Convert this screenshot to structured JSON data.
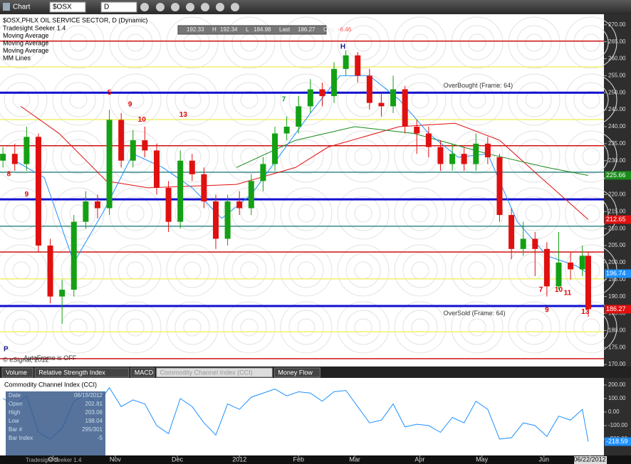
{
  "toolbar": {
    "title": "Chart",
    "symbol": "$OSX",
    "interval": "D"
  },
  "quote": {
    "open": 192.33,
    "high_label": "H",
    "high": 192.34,
    "low_label": "L",
    "low": 184.98,
    "last_label": "Last",
    "last": 186.27,
    "chg_label": "Chg",
    "chg": -6.46
  },
  "tabs": [
    "Volume",
    "Relative Strength Index",
    "MACD",
    "Commodity Channel Index (CCI)",
    "Money Flow"
  ],
  "data_window": {
    "labels": [
      "Date",
      "Open",
      "High",
      "Low",
      "Bar #",
      "Bar Index"
    ],
    "values": [
      "06/19/2012",
      "202.81",
      "203.06",
      "198.04",
      "295/301",
      "-5"
    ],
    "study": "Tradesight Seeker 1.4"
  },
  "chart_data": [
    {
      "type": "candlestick",
      "title": "$OSX,PHLX OIL SERVICE SECTOR, D (Dynamic)",
      "studies": [
        "Tradesight Seeker 1.4",
        "Moving Average",
        "Moving Average",
        "Moving Average",
        "MM Lines"
      ],
      "x": [
        1,
        5,
        9,
        13,
        17,
        21,
        25,
        29,
        33,
        37,
        41,
        45,
        49,
        53,
        57,
        61,
        65,
        69,
        73,
        77,
        81,
        85,
        89,
        93,
        97,
        101,
        105,
        109,
        113,
        117,
        121,
        125,
        129,
        133,
        137,
        141,
        145,
        149,
        153,
        157,
        161,
        165,
        169,
        173,
        177,
        181,
        185,
        189,
        193,
        197,
        199
      ],
      "open": [
        230,
        232,
        229,
        237,
        205,
        190,
        192,
        212,
        218,
        216,
        242,
        230,
        236,
        233,
        222,
        212,
        230,
        226,
        218,
        207,
        218,
        216,
        224,
        229,
        238,
        240,
        246,
        251,
        249,
        257,
        261,
        255,
        247,
        246,
        251,
        240,
        238,
        234,
        229,
        232,
        229,
        235,
        231,
        214,
        204,
        207,
        204,
        193,
        200,
        198,
        202
      ],
      "high": [
        234,
        235,
        240,
        238,
        207,
        195,
        214,
        221,
        220,
        245,
        244,
        239,
        240,
        235,
        224,
        233,
        232,
        228,
        220,
        220,
        221,
        226,
        231,
        240,
        243,
        249,
        254,
        253,
        259,
        262.5,
        262,
        257,
        250,
        255,
        252,
        242,
        240,
        236,
        235,
        234,
        238,
        237,
        232,
        216,
        212,
        209,
        206,
        209,
        203,
        205,
        203
      ],
      "low": [
        228,
        227,
        227,
        203,
        188,
        182,
        190,
        210,
        213,
        214,
        228,
        228,
        231,
        220,
        209,
        210,
        224,
        216,
        204,
        205,
        214,
        214,
        221,
        227,
        236,
        238,
        244,
        246,
        247,
        255,
        253,
        245,
        243,
        244,
        238,
        232,
        231,
        227,
        227,
        227,
        227,
        229,
        212,
        201,
        202,
        196,
        190,
        192,
        195,
        196,
        184
      ],
      "close": [
        232,
        229,
        237,
        205,
        190,
        192,
        212,
        218,
        216,
        242,
        230,
        236,
        233,
        222,
        212,
        230,
        226,
        218,
        207,
        218,
        216,
        224,
        229,
        238,
        240,
        246,
        251,
        249,
        257,
        261,
        255,
        247,
        246,
        251,
        240,
        238,
        234,
        229,
        232,
        229,
        235,
        231,
        214,
        204,
        207,
        204,
        193,
        200,
        198,
        202,
        186.27
      ],
      "up_color": "#14a014",
      "down_color": "#e01010",
      "series": [
        {
          "name": "Moving Average",
          "color": "#e01010",
          "x": [
            7,
            20,
            36,
            50,
            80,
            100,
            111,
            135,
            154,
            169,
            183,
            199
          ],
          "values": [
            246,
            238,
            224,
            222,
            223,
            228,
            234,
            240,
            241,
            236,
            225,
            212.65
          ]
        },
        {
          "name": "Moving Average",
          "color": "#1a8a1a",
          "x": [
            80,
            100,
            120,
            140,
            165,
            185,
            199
          ],
          "values": [
            228,
            236,
            240,
            238,
            232,
            228,
            225.66
          ]
        },
        {
          "name": "Moving Average",
          "color": "#1e90ff",
          "x": [
            5,
            15,
            25,
            35,
            45,
            55,
            65,
            75,
            85,
            95,
            105,
            115,
            125,
            135,
            145,
            155,
            165,
            175,
            185,
            195,
            199
          ],
          "values": [
            230,
            225,
            200,
            215,
            232,
            228,
            222,
            213,
            220,
            232,
            244,
            255,
            255,
            248,
            238,
            231,
            232,
            212,
            202,
            199,
            196.74
          ]
        }
      ],
      "levels": [
        {
          "value": 250,
          "color": "#1010d0"
        },
        {
          "value": 218.6,
          "color": "#1010d0"
        },
        {
          "value": 187.2,
          "color": "#1010d0"
        },
        {
          "value": 265.2,
          "color": "#d01010"
        },
        {
          "value": 234.4,
          "color": "#d01010"
        },
        {
          "value": 203.1,
          "color": "#d01010"
        },
        {
          "value": 171.7,
          "color": "#d01010"
        },
        {
          "value": 257.6,
          "color": "#f0f070"
        },
        {
          "value": 242.1,
          "color": "#f0f070"
        },
        {
          "value": 195.2,
          "color": "#f0f070"
        },
        {
          "value": 179.6,
          "color": "#f0f070"
        },
        {
          "value": 226.6,
          "color": "#3a8a8a"
        },
        {
          "value": 210.7,
          "color": "#3a8a8a"
        }
      ],
      "annotations": [
        {
          "text": "OverBought (Frame: 64)",
          "x": 150,
          "y": 252
        },
        {
          "text": "OverSold (Frame: 64)",
          "x": 150,
          "y": 185
        },
        {
          "text": "AutoFrame is OFF",
          "x": 8,
          "y": 171.8
        },
        {
          "text": "© eSignal, 2012",
          "x": 1,
          "y": 171.3
        }
      ],
      "counts": [
        {
          "text": "H",
          "x": 116,
          "y": 263.5,
          "color": "#1a1a8c"
        },
        {
          "text": "13",
          "x": 62,
          "y": 243.5,
          "color": "#e00000"
        },
        {
          "text": "9",
          "x": 44,
          "y": 246.5,
          "color": "#e00000"
        },
        {
          "text": "10",
          "x": 48,
          "y": 242,
          "color": "#e00000"
        },
        {
          "text": "5",
          "x": 37,
          "y": 250,
          "color": "#e00000"
        },
        {
          "text": "7",
          "x": 96,
          "y": 248,
          "color": "#20a020"
        },
        {
          "text": "9",
          "x": 185,
          "y": 186,
          "color": "#e00000"
        },
        {
          "text": "10",
          "x": 189,
          "y": 192,
          "color": "#e00000"
        },
        {
          "text": "11",
          "x": 192,
          "y": 191,
          "color": "#e00000"
        },
        {
          "text": "7",
          "x": 183,
          "y": 192,
          "color": "#e00000"
        },
        {
          "text": "13",
          "x": 198,
          "y": 185.5,
          "color": "#e00000"
        },
        {
          "text": "8",
          "x": 3,
          "y": 226,
          "color": "#e00000"
        },
        {
          "text": "9",
          "x": 9,
          "y": 220,
          "color": "#e00000"
        },
        {
          "text": "P",
          "x": 2,
          "y": 174.5,
          "color": "#1a1a8c"
        }
      ],
      "xlim": [
        0,
        204.3
      ],
      "xticks": [
        {
          "value": 18,
          "label": "Oct"
        },
        {
          "value": 39,
          "label": "Nov"
        },
        {
          "value": 60,
          "label": "Dec"
        },
        {
          "value": 81,
          "label": "2012"
        },
        {
          "value": 101,
          "label": "Feb"
        },
        {
          "value": 120,
          "label": "Mar"
        },
        {
          "value": 142,
          "label": "Apr"
        },
        {
          "value": 163,
          "label": "May"
        },
        {
          "value": 184,
          "label": "Jun"
        },
        {
          "value": 199.5,
          "label": "06/22/2012"
        }
      ],
      "ylim": [
        169.4,
        273.1
      ],
      "yticks": [
        {
          "value": 170,
          "label": "170.00"
        },
        {
          "value": 175,
          "label": "175.00"
        },
        {
          "value": 180,
          "label": "180.00"
        },
        {
          "value": 185,
          "label": "185.00"
        },
        {
          "value": 190,
          "label": "190.00"
        },
        {
          "value": 195,
          "label": "195.00"
        },
        {
          "value": 200,
          "label": "200.00"
        },
        {
          "value": 205,
          "label": "205.00"
        },
        {
          "value": 210,
          "label": "210.00"
        },
        {
          "value": 215,
          "label": "215.00"
        },
        {
          "value": 220,
          "label": "220.00"
        },
        {
          "value": 225,
          "label": "225.00"
        },
        {
          "value": 230,
          "label": "230.00"
        },
        {
          "value": 235,
          "label": "235.00"
        },
        {
          "value": 240,
          "label": "240.00"
        },
        {
          "value": 245,
          "label": "245.00"
        },
        {
          "value": 250,
          "label": "250.00"
        },
        {
          "value": 255,
          "label": "255.00"
        },
        {
          "value": 260,
          "label": "260.00"
        },
        {
          "value": 265,
          "label": "265.00"
        },
        {
          "value": 270,
          "label": "270.00"
        }
      ]
    },
    {
      "type": "line",
      "title": "Commodity Channel Index (CCI)",
      "series": [
        {
          "name": "Commodity Channel Index (CCI)",
          "color": "#1e90ff",
          "x": [
            1,
            5,
            9,
            13,
            17,
            21,
            25,
            29,
            33,
            37,
            41,
            45,
            49,
            53,
            57,
            61,
            65,
            69,
            73,
            77,
            81,
            85,
            89,
            93,
            97,
            101,
            105,
            109,
            113,
            117,
            121,
            125,
            129,
            133,
            137,
            141,
            145,
            149,
            153,
            157,
            161,
            165,
            169,
            173,
            177,
            181,
            185,
            189,
            193,
            197,
            199
          ],
          "values": [
            100,
            50,
            120,
            -150,
            -200,
            -120,
            80,
            130,
            60,
            180,
            40,
            90,
            60,
            -100,
            -160,
            100,
            40,
            -80,
            -170,
            60,
            20,
            110,
            140,
            170,
            120,
            150,
            140,
            80,
            150,
            160,
            40,
            -80,
            -60,
            60,
            -110,
            -90,
            -100,
            -150,
            -40,
            -80,
            80,
            20,
            -200,
            -190,
            -80,
            -100,
            -180,
            -30,
            -60,
            20,
            -218.59
          ]
        }
      ],
      "xlim": [
        0,
        204.3
      ],
      "ylim": [
        -321,
        252.6
      ],
      "yticks": [
        {
          "value": 200,
          "label": "200.00"
        },
        {
          "value": 100,
          "label": "100.00"
        },
        {
          "value": 0,
          "label": "0.00"
        },
        {
          "value": -100,
          "label": "-100.00"
        },
        {
          "value": -200,
          "label": "-200.00"
        }
      ]
    }
  ]
}
